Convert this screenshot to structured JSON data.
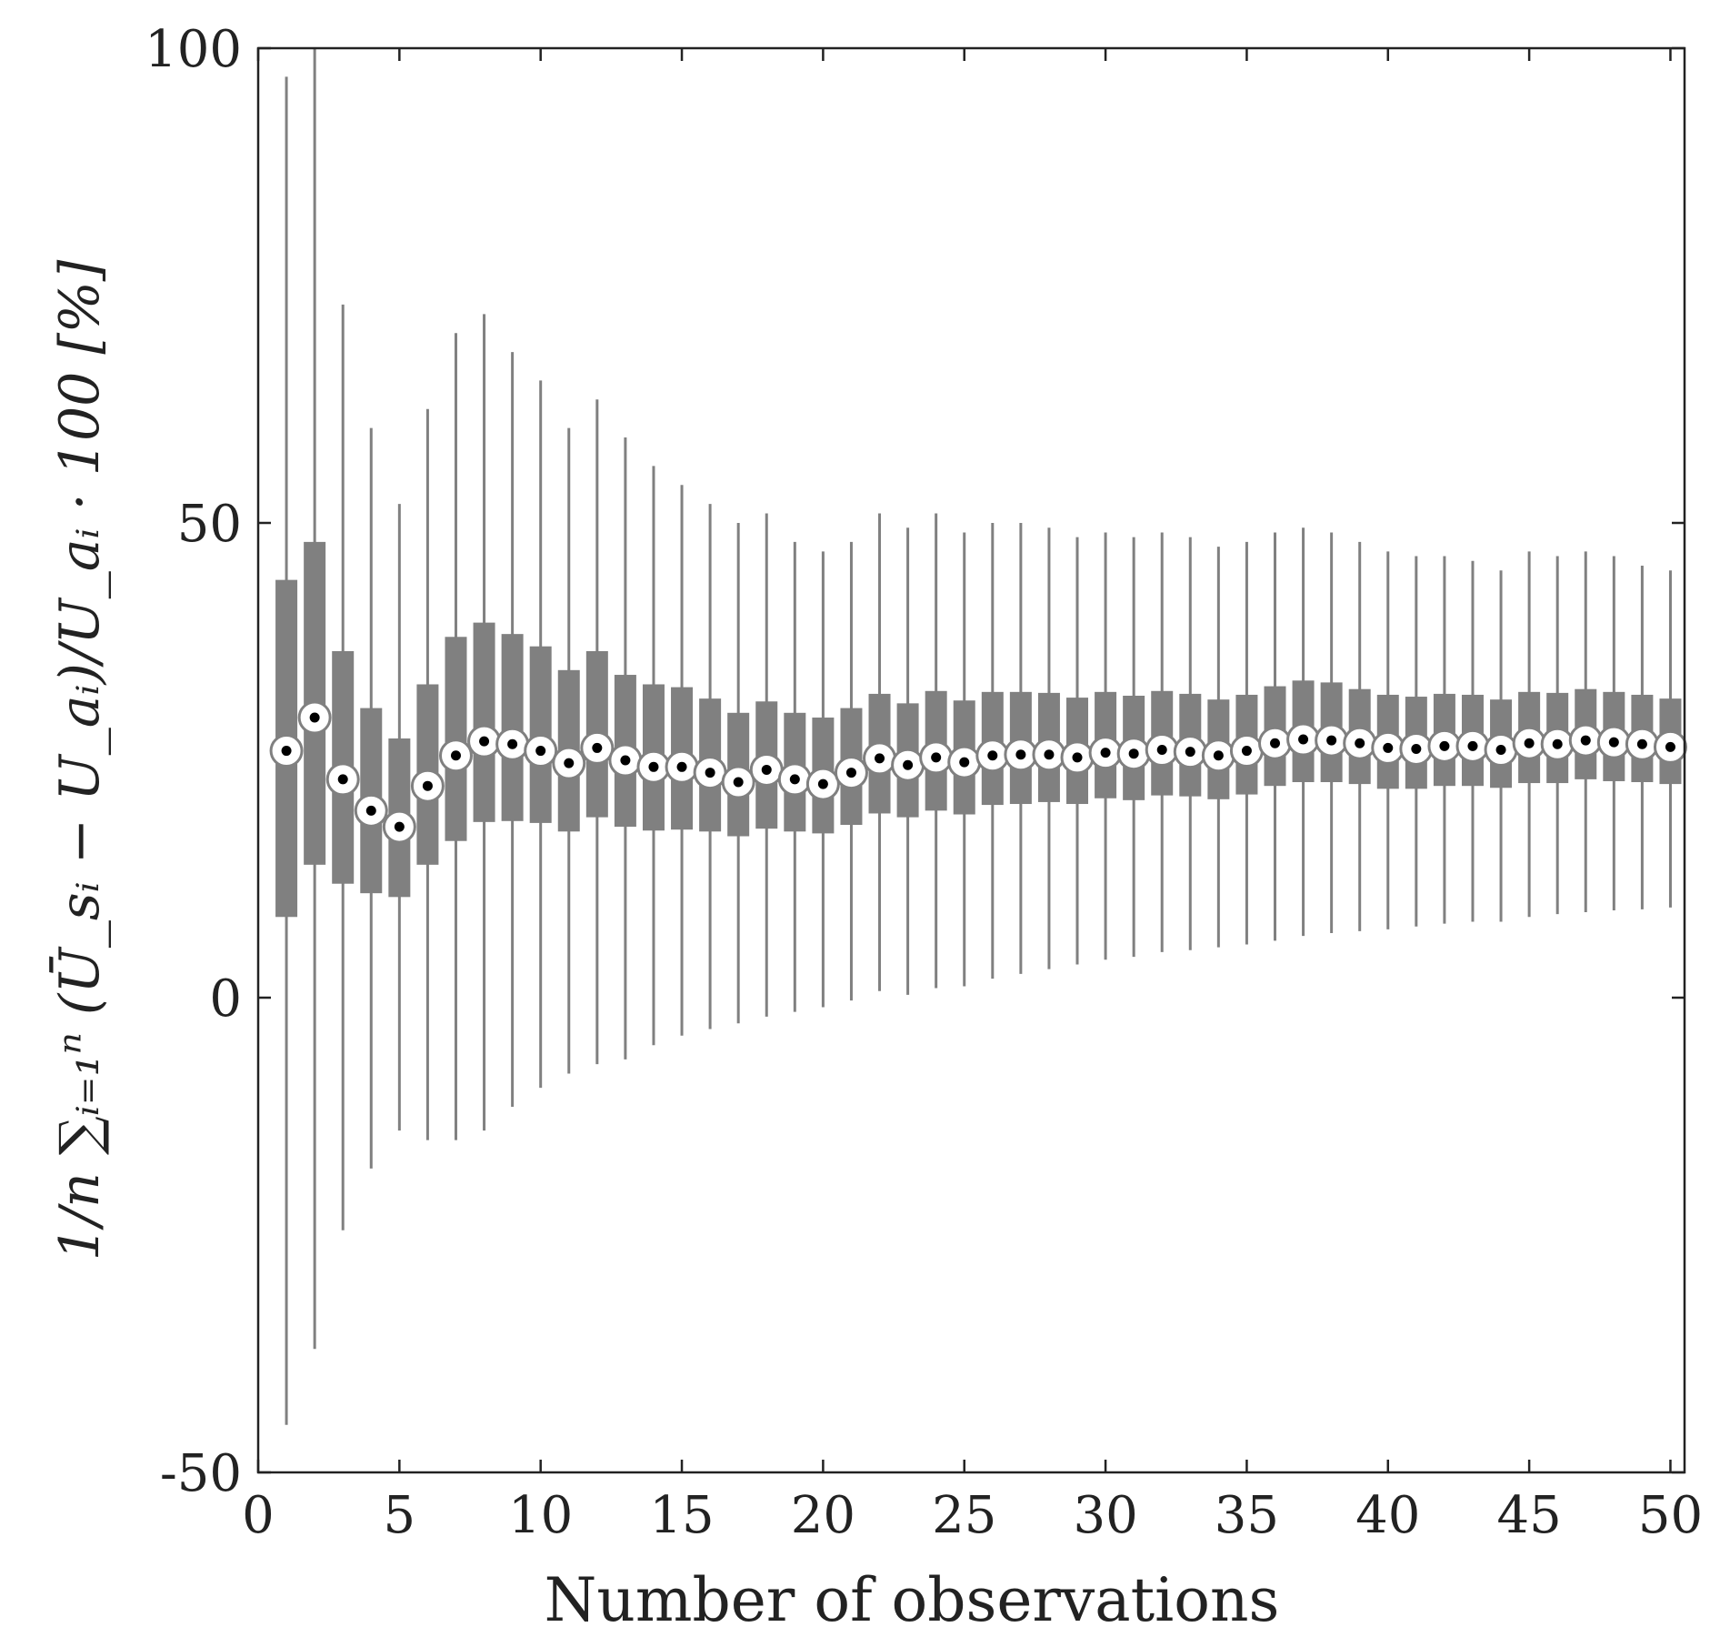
{
  "chart_data": {
    "type": "box",
    "xlabel": "Number of observations",
    "ylabel": "1/n ∑ᵢ₌₁ⁿ (Ū_sᵢ − U_aᵢ)/U_aᵢ · 100 [%]",
    "xlim": [
      0,
      50.5
    ],
    "ylim": [
      -50,
      100
    ],
    "xticks": [
      0,
      5,
      10,
      15,
      20,
      25,
      30,
      35,
      40,
      45,
      50
    ],
    "yticks": [
      -50,
      0,
      50,
      100
    ],
    "yticklabels": [
      "-50",
      "0",
      "50",
      "100"
    ],
    "grid": false,
    "colors": {
      "box": "#808080",
      "whisker": "#808080",
      "median_fill": "#ffffff",
      "median_dot": "#000000",
      "axis": "#222222"
    },
    "boxes": [
      {
        "x": 1,
        "whisker_low": -45,
        "q1": 8.5,
        "median": 26,
        "q3": 44,
        "whisker_high": 97
      },
      {
        "x": 2,
        "whisker_low": -37,
        "q1": 14,
        "median": 29.5,
        "q3": 48,
        "whisker_high": 100
      },
      {
        "x": 3,
        "whisker_low": -24.5,
        "q1": 12,
        "median": 23,
        "q3": 36.5,
        "whisker_high": 73
      },
      {
        "x": 4,
        "whisker_low": -18,
        "q1": 11,
        "median": 19.7,
        "q3": 30.5,
        "whisker_high": 60
      },
      {
        "x": 5,
        "whisker_low": -14,
        "q1": 10.6,
        "median": 18,
        "q3": 27.3,
        "whisker_high": 52
      },
      {
        "x": 6,
        "whisker_low": -15,
        "q1": 14,
        "median": 22.3,
        "q3": 33,
        "whisker_high": 62
      },
      {
        "x": 7,
        "whisker_low": -15,
        "q1": 16.5,
        "median": 25.5,
        "q3": 38,
        "whisker_high": 70
      },
      {
        "x": 8,
        "whisker_low": -14,
        "q1": 18.5,
        "median": 27,
        "q3": 39.5,
        "whisker_high": 72
      },
      {
        "x": 9,
        "whisker_low": -11.5,
        "q1": 18.6,
        "median": 26.7,
        "q3": 38.3,
        "whisker_high": 68
      },
      {
        "x": 10,
        "whisker_low": -9.5,
        "q1": 18.4,
        "median": 26,
        "q3": 37,
        "whisker_high": 65
      },
      {
        "x": 11,
        "whisker_low": -8,
        "q1": 17.5,
        "median": 24.7,
        "q3": 34.5,
        "whisker_high": 60
      },
      {
        "x": 12,
        "whisker_low": -7,
        "q1": 19,
        "median": 26.3,
        "q3": 36.5,
        "whisker_high": 63
      },
      {
        "x": 13,
        "whisker_low": -6.5,
        "q1": 18,
        "median": 25,
        "q3": 34,
        "whisker_high": 59
      },
      {
        "x": 14,
        "whisker_low": -5,
        "q1": 17.6,
        "median": 24.3,
        "q3": 33,
        "whisker_high": 56
      },
      {
        "x": 15,
        "whisker_low": -4,
        "q1": 17.7,
        "median": 24.3,
        "q3": 32.7,
        "whisker_high": 54
      },
      {
        "x": 16,
        "whisker_low": -3.3,
        "q1": 17.5,
        "median": 23.7,
        "q3": 31.5,
        "whisker_high": 52
      },
      {
        "x": 17,
        "whisker_low": -2.7,
        "q1": 17,
        "median": 22.7,
        "q3": 30,
        "whisker_high": 50
      },
      {
        "x": 18,
        "whisker_low": -2,
        "q1": 17.8,
        "median": 24,
        "q3": 31.2,
        "whisker_high": 51
      },
      {
        "x": 19,
        "whisker_low": -1.5,
        "q1": 17.5,
        "median": 23,
        "q3": 30,
        "whisker_high": 48
      },
      {
        "x": 20,
        "whisker_low": -1,
        "q1": 17.3,
        "median": 22.5,
        "q3": 29.5,
        "whisker_high": 47
      },
      {
        "x": 21,
        "whisker_low": -0.3,
        "q1": 18.2,
        "median": 23.7,
        "q3": 30.5,
        "whisker_high": 48
      },
      {
        "x": 22,
        "whisker_low": 0.7,
        "q1": 19.4,
        "median": 25.2,
        "q3": 32,
        "whisker_high": 51
      },
      {
        "x": 23,
        "whisker_low": 0.3,
        "q1": 19,
        "median": 24.5,
        "q3": 31,
        "whisker_high": 49.5
      },
      {
        "x": 24,
        "whisker_low": 1,
        "q1": 19.7,
        "median": 25.3,
        "q3": 32.3,
        "whisker_high": 51
      },
      {
        "x": 25,
        "whisker_low": 1.2,
        "q1": 19.3,
        "median": 24.8,
        "q3": 31.3,
        "whisker_high": 49
      },
      {
        "x": 26,
        "whisker_low": 2,
        "q1": 20.3,
        "median": 25.5,
        "q3": 32.2,
        "whisker_high": 50
      },
      {
        "x": 27,
        "whisker_low": 2.5,
        "q1": 20.4,
        "median": 25.6,
        "q3": 32.2,
        "whisker_high": 50
      },
      {
        "x": 28,
        "whisker_low": 3,
        "q1": 20.6,
        "median": 25.6,
        "q3": 32.1,
        "whisker_high": 49.5
      },
      {
        "x": 29,
        "whisker_low": 3.5,
        "q1": 20.4,
        "median": 25.3,
        "q3": 31.6,
        "whisker_high": 48.5
      },
      {
        "x": 30,
        "whisker_low": 4,
        "q1": 21,
        "median": 25.8,
        "q3": 32.2,
        "whisker_high": 49
      },
      {
        "x": 31,
        "whisker_low": 4.3,
        "q1": 20.8,
        "median": 25.7,
        "q3": 31.8,
        "whisker_high": 48.5
      },
      {
        "x": 32,
        "whisker_low": 4.8,
        "q1": 21.3,
        "median": 26.1,
        "q3": 32.3,
        "whisker_high": 49
      },
      {
        "x": 33,
        "whisker_low": 5,
        "q1": 21.2,
        "median": 25.9,
        "q3": 32,
        "whisker_high": 48.5
      },
      {
        "x": 34,
        "whisker_low": 5.3,
        "q1": 20.9,
        "median": 25.5,
        "q3": 31.4,
        "whisker_high": 47.5
      },
      {
        "x": 35,
        "whisker_low": 5.6,
        "q1": 21.4,
        "median": 26,
        "q3": 31.9,
        "whisker_high": 48
      },
      {
        "x": 36,
        "whisker_low": 6,
        "q1": 22.3,
        "median": 26.8,
        "q3": 32.8,
        "whisker_high": 49
      },
      {
        "x": 37,
        "whisker_low": 6.5,
        "q1": 22.7,
        "median": 27.2,
        "q3": 33.4,
        "whisker_high": 49.5
      },
      {
        "x": 38,
        "whisker_low": 6.8,
        "q1": 22.7,
        "median": 27.1,
        "q3": 33.2,
        "whisker_high": 49
      },
      {
        "x": 39,
        "whisker_low": 7,
        "q1": 22.5,
        "median": 26.8,
        "q3": 32.5,
        "whisker_high": 48
      },
      {
        "x": 40,
        "whisker_low": 7.2,
        "q1": 22,
        "median": 26.3,
        "q3": 31.9,
        "whisker_high": 47
      },
      {
        "x": 41,
        "whisker_low": 7.5,
        "q1": 22,
        "median": 26.2,
        "q3": 31.7,
        "whisker_high": 46.5
      },
      {
        "x": 42,
        "whisker_low": 7.8,
        "q1": 22.3,
        "median": 26.5,
        "q3": 32,
        "whisker_high": 46.5
      },
      {
        "x": 43,
        "whisker_low": 8,
        "q1": 22.3,
        "median": 26.5,
        "q3": 31.9,
        "whisker_high": 46
      },
      {
        "x": 44,
        "whisker_low": 8,
        "q1": 22.1,
        "median": 26.1,
        "q3": 31.4,
        "whisker_high": 45
      },
      {
        "x": 45,
        "whisker_low": 8.5,
        "q1": 22.6,
        "median": 26.8,
        "q3": 32.2,
        "whisker_high": 47
      },
      {
        "x": 46,
        "whisker_low": 8.8,
        "q1": 22.6,
        "median": 26.7,
        "q3": 32.1,
        "whisker_high": 46.5
      },
      {
        "x": 47,
        "whisker_low": 9,
        "q1": 23,
        "median": 27.1,
        "q3": 32.5,
        "whisker_high": 47
      },
      {
        "x": 48,
        "whisker_low": 9.2,
        "q1": 22.8,
        "median": 26.9,
        "q3": 32.2,
        "whisker_high": 46.5
      },
      {
        "x": 49,
        "whisker_low": 9.3,
        "q1": 22.7,
        "median": 26.7,
        "q3": 31.9,
        "whisker_high": 45.5
      },
      {
        "x": 50,
        "whisker_low": 9.5,
        "q1": 22.5,
        "median": 26.4,
        "q3": 31.5,
        "whisker_high": 45
      }
    ]
  }
}
